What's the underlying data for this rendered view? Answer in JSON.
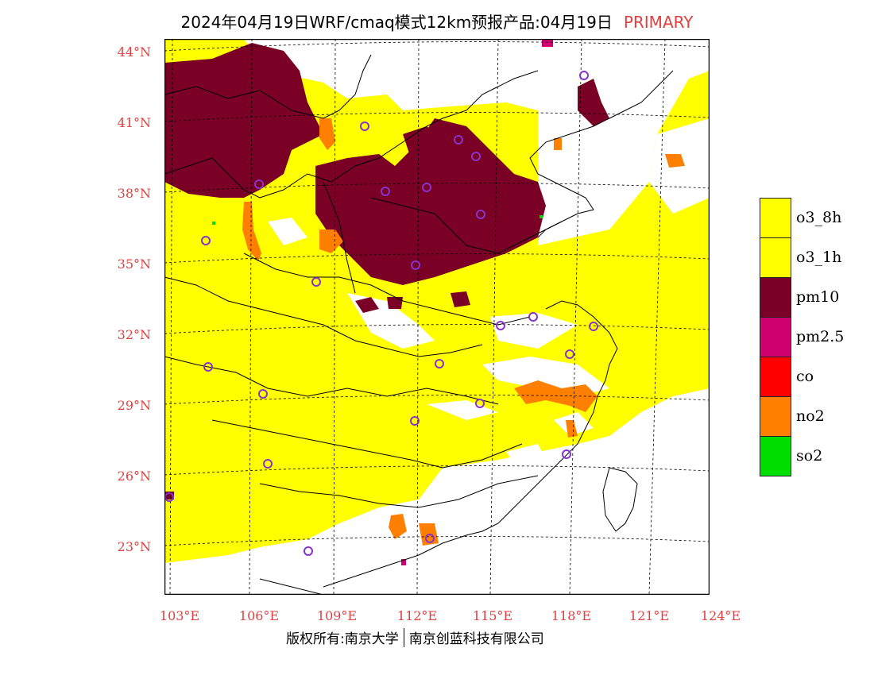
{
  "title": {
    "main": "2024年04月19日WRF/cmaq模式12km预报产品:04月19日",
    "tag": "PRIMARY"
  },
  "map": {
    "lat_labels": [
      "44°N",
      "41°N",
      "38°N",
      "35°N",
      "32°N",
      "29°N",
      "26°N",
      "23°N"
    ],
    "lon_labels": [
      "103°E",
      "106°E",
      "109°E",
      "112°E",
      "115°E",
      "118°E",
      "121°E",
      "124°E"
    ],
    "colors": {
      "o3_8h": "#ffff00",
      "o3_1h": "#ffff00",
      "pm10": "#7a0026",
      "pm25": "#d0006f",
      "co": "#ff0000",
      "no2": "#ff7f00",
      "so2": "#00dd00",
      "station": "#8833cc"
    }
  },
  "legend": [
    {
      "label": "o3_8h",
      "color": "#ffff00"
    },
    {
      "label": "o3_1h",
      "color": "#ffff00"
    },
    {
      "label": "pm10",
      "color": "#7a0026"
    },
    {
      "label": "pm2.5",
      "color": "#d0006f"
    },
    {
      "label": "co",
      "color": "#ff0000"
    },
    {
      "label": "no2",
      "color": "#ff7f00"
    },
    {
      "label": "so2",
      "color": "#00dd00"
    }
  ],
  "footer": {
    "left": "版权所有:南京大学",
    "right": "南京创蓝科技有限公司"
  }
}
